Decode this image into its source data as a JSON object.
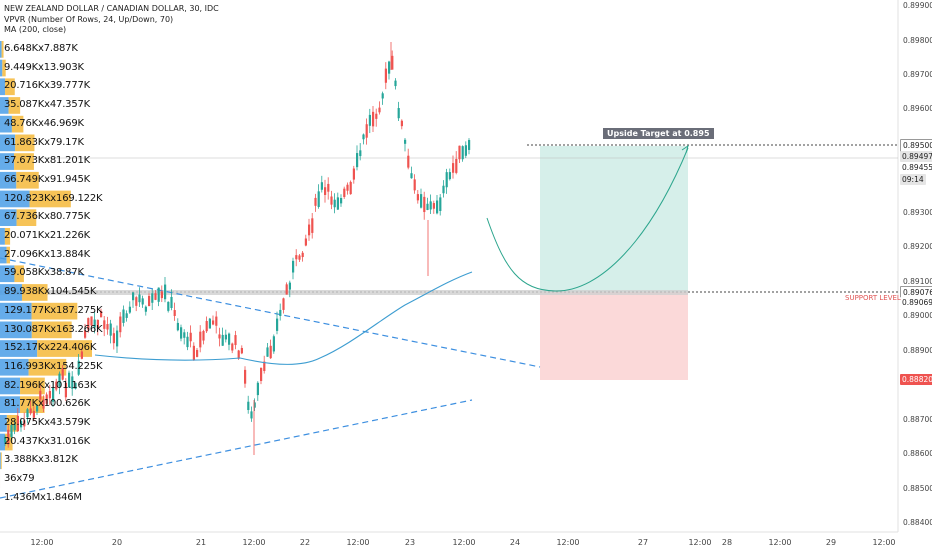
{
  "legend": {
    "title": "NEW ZEALAND DOLLAR / CANADIAN DOLLAR, 30, IDC",
    "indicator1": "VPVR (Number Of Rows, 24, Up/Down, 70)",
    "indicator2": "MA (200, close)"
  },
  "volume_profile": [
    {
      "label": "6.648Kx7.887K",
      "up": 6.648,
      "down": 7.887
    },
    {
      "label": "9.449Kx13.903K",
      "up": 9.449,
      "down": 13.903
    },
    {
      "label": "20.716Kx39.777K",
      "up": 20.716,
      "down": 39.777
    },
    {
      "label": "35.087Kx47.357K",
      "up": 35.087,
      "down": 47.357
    },
    {
      "label": "48.76Kx46.969K",
      "up": 48.76,
      "down": 46.969
    },
    {
      "label": "61.863Kx79.17K",
      "up": 61.863,
      "down": 79.17
    },
    {
      "label": "57.673Kx81.201K",
      "up": 57.673,
      "down": 81.201
    },
    {
      "label": "66.749Kx91.945K",
      "up": 66.749,
      "down": 91.945
    },
    {
      "label": "120.823Kx169.122K",
      "up": 120.823,
      "down": 169.122
    },
    {
      "label": "67.736Kx80.775K",
      "up": 67.736,
      "down": 80.775
    },
    {
      "label": "20.071Kx21.226K",
      "up": 20.071,
      "down": 21.226
    },
    {
      "label": "27.096Kx13.884K",
      "up": 27.096,
      "down": 13.884
    },
    {
      "label": "59.058Kx38.87K",
      "up": 59.058,
      "down": 38.87
    },
    {
      "label": "89.938Kx104.545K",
      "up": 89.938,
      "down": 104.545
    },
    {
      "label": "129.177Kx187.275K",
      "up": 129.177,
      "down": 187.275
    },
    {
      "label": "130.087Kx163.266K",
      "up": 130.087,
      "down": 163.266
    },
    {
      "label": "152.17Kx224.406K",
      "up": 152.17,
      "down": 224.406
    },
    {
      "label": "116.993Kx154.225K",
      "up": 116.993,
      "down": 154.225
    },
    {
      "label": "82.196Kx101.163K",
      "up": 82.196,
      "down": 101.163
    },
    {
      "label": "81.77Kx100.626K",
      "up": 81.77,
      "down": 100.626
    },
    {
      "label": "28.075Kx43.579K",
      "up": 28.075,
      "down": 43.579
    },
    {
      "label": "20.437Kx31.016K",
      "up": 20.437,
      "down": 31.016
    },
    {
      "label": "3.388Kx3.812K",
      "up": 3.388,
      "down": 3.812
    },
    {
      "label": "36x79",
      "up": 0.036,
      "down": 0.079
    },
    {
      "label": "1.436Mx1.846M",
      "up": 1436,
      "down": 1846
    }
  ],
  "price_axis": [
    "0.89900",
    "0.89800",
    "0.89700",
    "0.89600",
    "0.89500",
    "0.89300",
    "0.89200",
    "0.89100",
    "0.89000",
    "0.88900",
    "0.88700",
    "0.88600",
    "0.88500",
    "0.88400"
  ],
  "time_axis": [
    "12:00",
    "20",
    "21",
    "12:00",
    "22",
    "12:00",
    "23",
    "12:00",
    "24",
    "12:00",
    "27",
    "12:00",
    "28",
    "12:00",
    "29",
    "12:00"
  ],
  "price_tags": {
    "target": "0.89500",
    "current": "0.89497",
    "t2": "0.89455",
    "countdown": "09:14",
    "support1": "0.89076",
    "support2": "0.89069",
    "stop": "0.88820"
  },
  "annotations": {
    "target_label": "Upside Target at 0.895",
    "support_label": "SUPPORT LEVEL"
  },
  "colors": {
    "up": "#26a69a",
    "down": "#ef5350",
    "ma": "#3d9dd1",
    "trendline": "#3d8fe0",
    "profit_zone": "#d6efea",
    "loss_zone": "#fbd9d9",
    "vp_up": "#4a9de6",
    "vp_down": "#f5b93a"
  }
}
